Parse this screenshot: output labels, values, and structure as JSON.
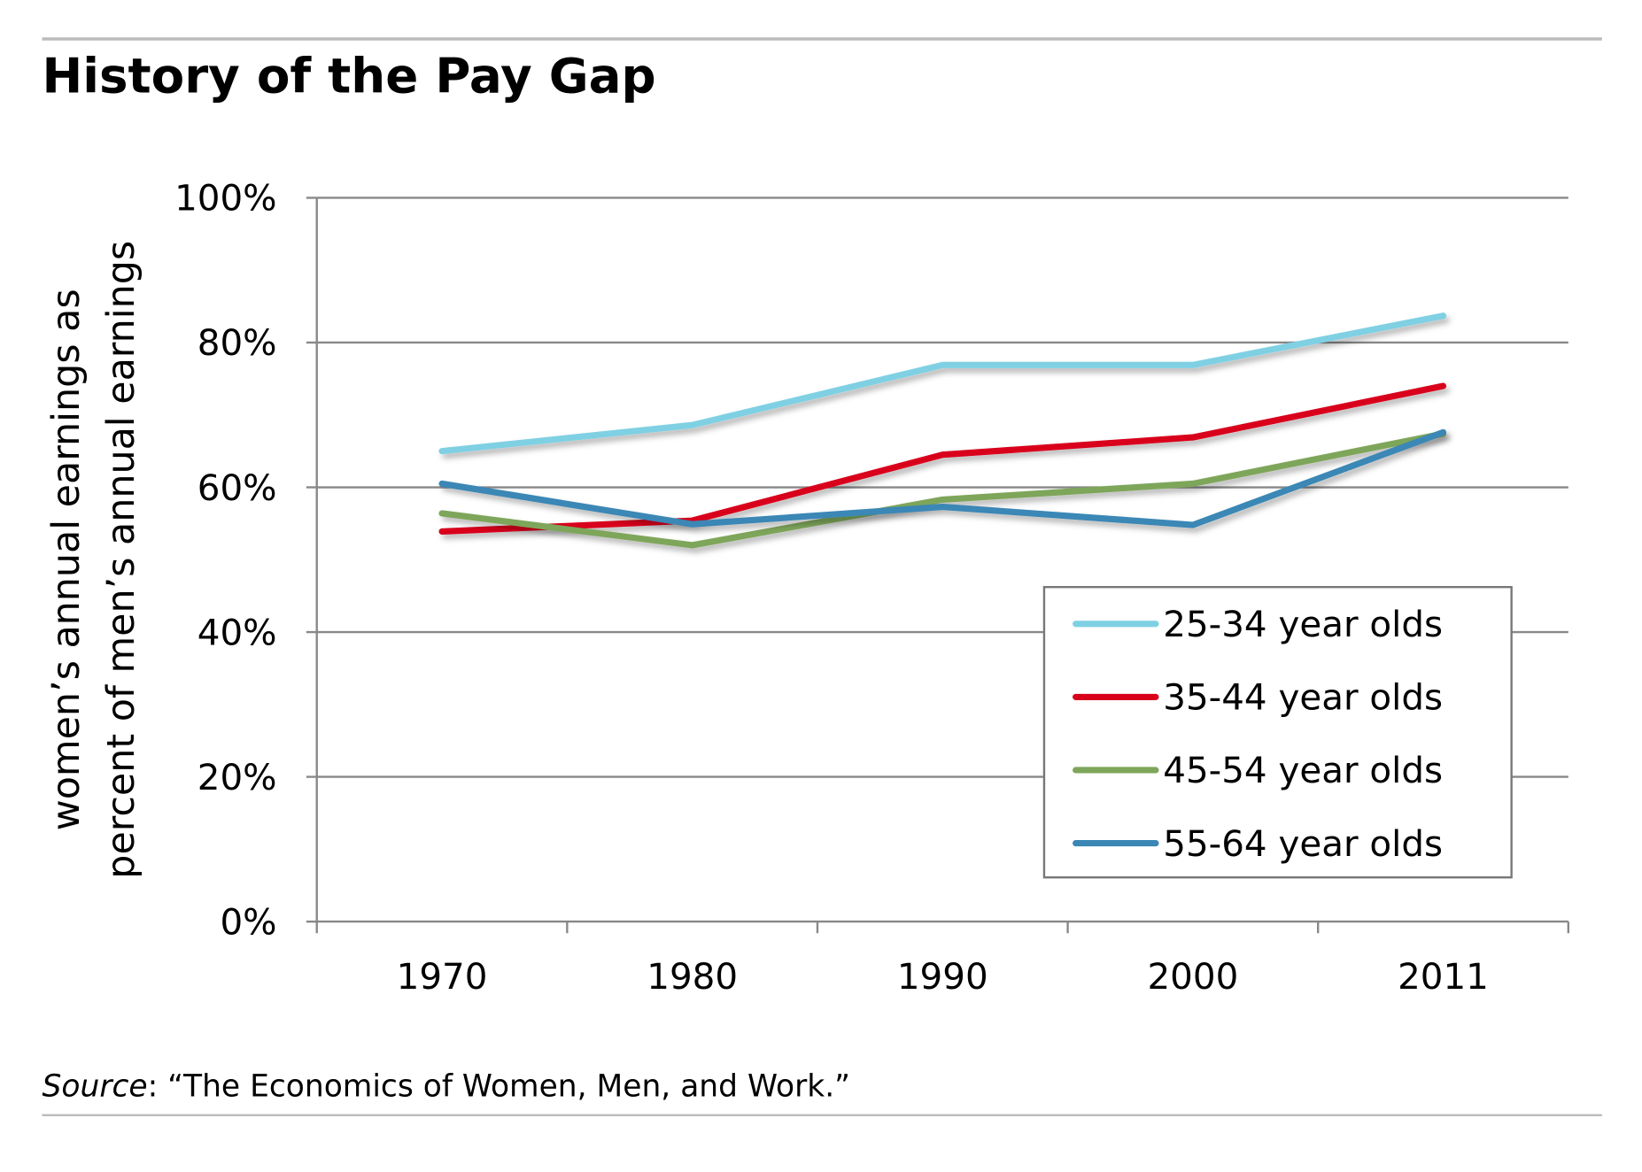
{
  "chart_data": {
    "type": "line",
    "title": "History of the Pay Gap",
    "xlabel": "",
    "ylabel": [
      "women’s annual earnings as",
      "percent of men’s annual earnings"
    ],
    "categories": [
      "1970",
      "1980",
      "1990",
      "2000",
      "2011"
    ],
    "ylim": [
      0,
      100
    ],
    "yticks": [
      0,
      20,
      40,
      60,
      80,
      100
    ],
    "ytick_labels": [
      "0%",
      "20%",
      "40%",
      "60%",
      "80%",
      "100%"
    ],
    "grid": true,
    "legend_position": "bottom-right",
    "series": [
      {
        "name": "25-34 year olds",
        "color": "#7fd0e3",
        "values": [
          65.0,
          68.6,
          76.9,
          76.9,
          83.7
        ]
      },
      {
        "name": "35-44 year olds",
        "color": "#d9001b",
        "values": [
          53.9,
          55.4,
          64.5,
          66.9,
          74.0
        ]
      },
      {
        "name": "45-54 year olds",
        "color": "#7ea65a",
        "values": [
          56.4,
          52.0,
          58.3,
          60.5,
          67.4
        ]
      },
      {
        "name": "55-64 year olds",
        "color": "#3a87b5",
        "values": [
          60.5,
          54.9,
          57.3,
          54.8,
          67.6
        ]
      }
    ]
  },
  "source": {
    "label": "Source",
    "text": ": “The Economics of Women, Men, and Work.”"
  }
}
